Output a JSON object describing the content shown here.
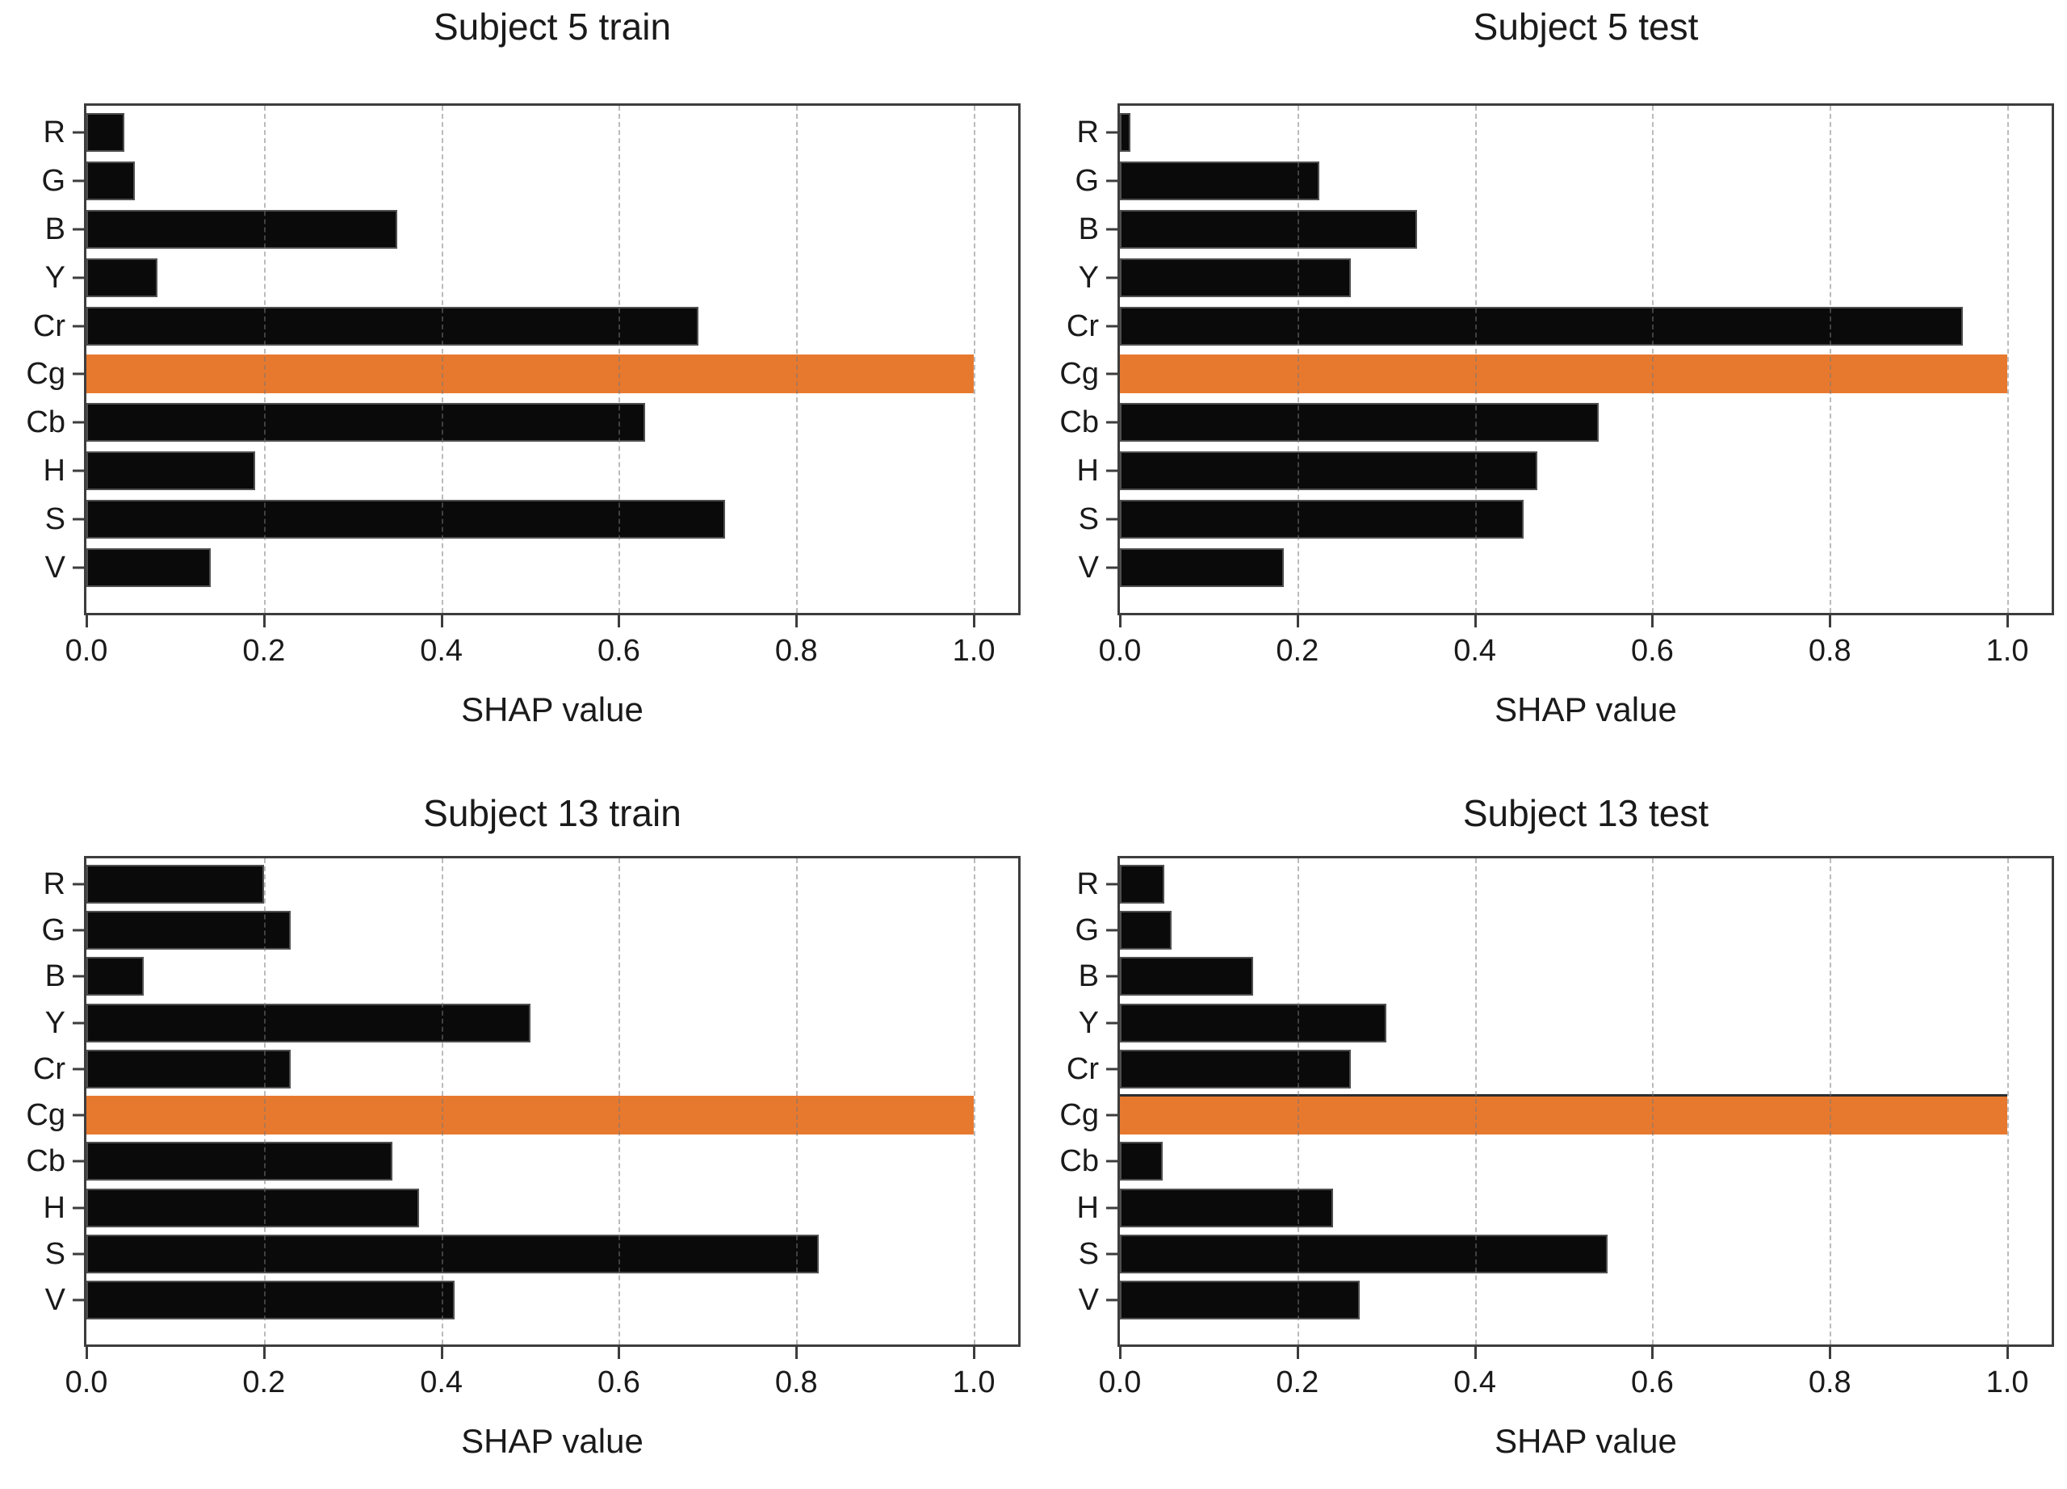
{
  "figure": {
    "background": "#ffffff"
  },
  "style": {
    "bar_color": "#0a0a0a",
    "bar_edge_color": "#4f4f4f",
    "highlight_color": "#e7792f",
    "grid_color": "rgba(120,120,120,0.5)",
    "spine_color": "#3d3d3d",
    "text_color": "#1a1a1a"
  },
  "chart_data": [
    {
      "type": "bar",
      "orientation": "horizontal",
      "title": "Subject 5 train",
      "xlabel": "SHAP value",
      "categories": [
        "R",
        "G",
        "B",
        "Y",
        "Cr",
        "Cg",
        "Cb",
        "H",
        "S",
        "V"
      ],
      "values": [
        0.043,
        0.055,
        0.35,
        0.08,
        0.69,
        1.0,
        0.63,
        0.19,
        0.72,
        0.14
      ],
      "highlight_category": "Cg",
      "highlight_index": 5,
      "highlight_top_edge": false,
      "xlim": [
        0,
        1.05
      ],
      "xticks": [
        0.0,
        0.2,
        0.4,
        0.6,
        0.8,
        1.0
      ],
      "xtick_labels": [
        "0.0",
        "0.2",
        "0.4",
        "0.6",
        "0.8",
        "1.0"
      ],
      "grid": "vertical dashed"
    },
    {
      "type": "bar",
      "orientation": "horizontal",
      "title": "Subject 5 test",
      "xlabel": "SHAP value",
      "categories": [
        "R",
        "G",
        "B",
        "Y",
        "Cr",
        "Cg",
        "Cb",
        "H",
        "S",
        "V"
      ],
      "values": [
        0.012,
        0.225,
        0.335,
        0.26,
        0.95,
        1.0,
        0.54,
        0.47,
        0.455,
        0.185
      ],
      "highlight_category": "Cg",
      "highlight_index": 5,
      "highlight_top_edge": false,
      "xlim": [
        0,
        1.05
      ],
      "xticks": [
        0.0,
        0.2,
        0.4,
        0.6,
        0.8,
        1.0
      ],
      "xtick_labels": [
        "0.0",
        "0.2",
        "0.4",
        "0.6",
        "0.8",
        "1.0"
      ],
      "grid": "vertical dashed"
    },
    {
      "type": "bar",
      "orientation": "horizontal",
      "title": "Subject 13 train",
      "xlabel": "SHAP value",
      "categories": [
        "R",
        "G",
        "B",
        "Y",
        "Cr",
        "Cg",
        "Cb",
        "H",
        "S",
        "V"
      ],
      "values": [
        0.2,
        0.23,
        0.065,
        0.5,
        0.23,
        1.0,
        0.345,
        0.375,
        0.825,
        0.415
      ],
      "highlight_category": "Cg",
      "highlight_index": 5,
      "highlight_top_edge": false,
      "xlim": [
        0,
        1.05
      ],
      "xticks": [
        0.0,
        0.2,
        0.4,
        0.6,
        0.8,
        1.0
      ],
      "xtick_labels": [
        "0.0",
        "0.2",
        "0.4",
        "0.6",
        "0.8",
        "1.0"
      ],
      "grid": "vertical dashed"
    },
    {
      "type": "bar",
      "orientation": "horizontal",
      "title": "Subject 13 test",
      "xlabel": "SHAP value",
      "categories": [
        "R",
        "G",
        "B",
        "Y",
        "Cr",
        "Cg",
        "Cb",
        "H",
        "S",
        "V"
      ],
      "values": [
        0.05,
        0.058,
        0.15,
        0.3,
        0.26,
        1.0,
        0.048,
        0.24,
        0.55,
        0.27
      ],
      "highlight_category": "Cg",
      "highlight_index": 5,
      "highlight_top_edge": true,
      "xlim": [
        0,
        1.05
      ],
      "xticks": [
        0.0,
        0.2,
        0.4,
        0.6,
        0.8,
        1.0
      ],
      "xtick_labels": [
        "0.0",
        "0.2",
        "0.4",
        "0.6",
        "0.8",
        "1.0"
      ],
      "grid": "vertical dashed"
    }
  ]
}
